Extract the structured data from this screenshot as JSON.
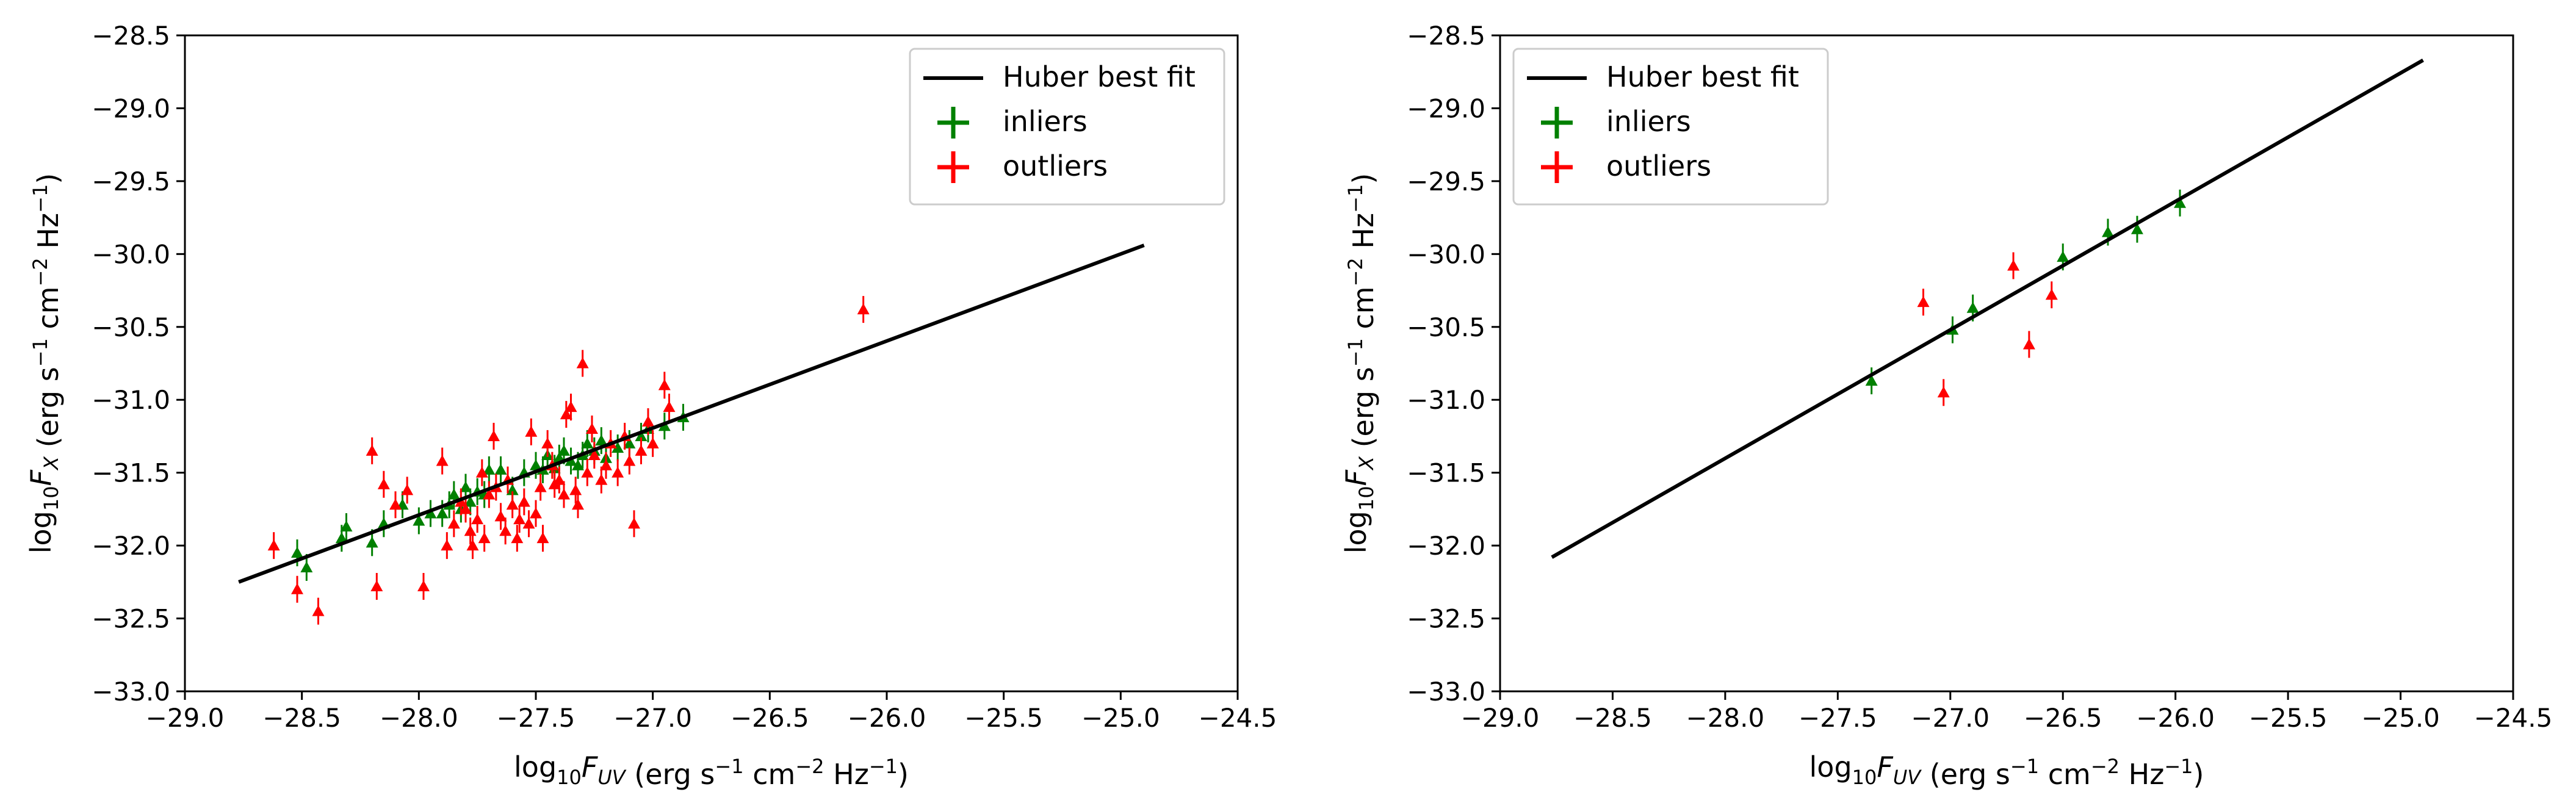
{
  "legend": {
    "fit_label": "Huber best fit",
    "inliers_label": "inliers",
    "outliers_label": "outliers"
  },
  "colors": {
    "fit": "#000000",
    "inliers": "#008000",
    "outliers": "#ff0000",
    "axes": "#000000"
  },
  "chart_data": [
    {
      "type": "scatter",
      "panel": "left",
      "xlabel": "log10 F_UV (erg s^-1 cm^-2 Hz^-1)",
      "ylabel": "log10 F_X (erg s^-1 cm^-2 Hz^-1)",
      "xlim": [
        -29.0,
        -24.5
      ],
      "ylim": [
        -33.0,
        -28.5
      ],
      "xticks": [
        "−29.0",
        "−28.5",
        "−28.0",
        "−27.5",
        "−27.0",
        "−26.5",
        "−26.0",
        "−25.5",
        "−25.0",
        "−24.5"
      ],
      "yticks": [
        "−28.5",
        "−29.0",
        "−29.5",
        "−30.0",
        "−30.5",
        "−31.0",
        "−31.5",
        "−32.0",
        "−32.5",
        "−33.0"
      ],
      "legend_position": "top-right",
      "grid": false,
      "fit_line": {
        "x": [
          -28.77,
          -24.9
        ],
        "y": [
          -32.25,
          -29.94
        ]
      },
      "series": [
        {
          "name": "inliers",
          "marker": "triangle",
          "x": [
            -28.52,
            -28.48,
            -28.33,
            -28.31,
            -28.2,
            -28.15,
            -28.07,
            -28.0,
            -27.95,
            -27.9,
            -27.87,
            -27.85,
            -27.82,
            -27.8,
            -27.78,
            -27.75,
            -27.72,
            -27.7,
            -27.65,
            -27.6,
            -27.55,
            -27.5,
            -27.47,
            -27.45,
            -27.42,
            -27.4,
            -27.38,
            -27.35,
            -27.32,
            -27.3,
            -27.28,
            -27.25,
            -27.22,
            -27.2,
            -27.15,
            -27.1,
            -27.05,
            -27.02,
            -26.95,
            -26.87
          ],
          "y": [
            -32.05,
            -32.15,
            -31.95,
            -31.87,
            -31.98,
            -31.85,
            -31.72,
            -31.83,
            -31.78,
            -31.78,
            -31.72,
            -31.65,
            -31.75,
            -31.6,
            -31.7,
            -31.63,
            -31.65,
            -31.48,
            -31.48,
            -31.62,
            -31.5,
            -31.45,
            -31.48,
            -31.38,
            -31.47,
            -31.4,
            -31.35,
            -31.42,
            -31.45,
            -31.38,
            -31.3,
            -31.35,
            -31.28,
            -31.4,
            -31.33,
            -31.3,
            -31.25,
            -31.2,
            -31.18,
            -31.12
          ]
        },
        {
          "name": "outliers",
          "marker": "triangle",
          "x": [
            -28.62,
            -28.52,
            -28.43,
            -28.2,
            -28.18,
            -28.15,
            -28.1,
            -28.05,
            -27.98,
            -27.9,
            -27.88,
            -27.85,
            -27.82,
            -27.8,
            -27.78,
            -27.77,
            -27.75,
            -27.72,
            -27.7,
            -27.68,
            -27.65,
            -27.63,
            -27.6,
            -27.58,
            -27.55,
            -27.53,
            -27.5,
            -27.48,
            -27.45,
            -27.43,
            -27.4,
            -27.38,
            -27.35,
            -27.33,
            -27.3,
            -27.28,
            -27.26,
            -27.25,
            -27.22,
            -27.2,
            -27.18,
            -27.15,
            -27.12,
            -27.1,
            -27.08,
            -27.05,
            -27.02,
            -27.0,
            -26.95,
            -26.93,
            -26.1,
            -27.62,
            -27.57,
            -27.47,
            -27.42,
            -27.37,
            -27.32,
            -27.52,
            -27.67,
            -27.73
          ],
          "y": [
            -32.0,
            -32.3,
            -32.45,
            -31.35,
            -32.28,
            -31.58,
            -31.72,
            -31.62,
            -32.28,
            -31.42,
            -32.0,
            -31.85,
            -31.7,
            -31.75,
            -31.9,
            -32.0,
            -31.82,
            -31.95,
            -31.65,
            -31.25,
            -31.8,
            -31.9,
            -31.72,
            -31.95,
            -31.7,
            -31.85,
            -31.78,
            -31.6,
            -31.3,
            -31.45,
            -31.55,
            -31.65,
            -31.05,
            -31.62,
            -30.75,
            -31.5,
            -31.2,
            -31.38,
            -31.55,
            -31.45,
            -31.3,
            -31.5,
            -31.25,
            -31.42,
            -31.85,
            -31.35,
            -31.15,
            -31.3,
            -30.9,
            -31.05,
            -30.38,
            -31.55,
            -31.82,
            -31.95,
            -31.58,
            -31.1,
            -31.72,
            -31.22,
            -31.6,
            -31.5
          ]
        }
      ]
    },
    {
      "type": "scatter",
      "panel": "right",
      "xlabel": "log10 F_UV (erg s^-1 cm^-2 Hz^-1)",
      "ylabel": "log10 F_X (erg s^-1 cm^-2 Hz^-1)",
      "xlim": [
        -29.0,
        -24.5
      ],
      "ylim": [
        -33.0,
        -28.5
      ],
      "xticks": [
        "−29.0",
        "−28.5",
        "−28.0",
        "−27.5",
        "−27.0",
        "−26.5",
        "−26.0",
        "−25.5",
        "−25.0",
        "−24.5"
      ],
      "yticks": [
        "−28.5",
        "−29.0",
        "−29.5",
        "−30.0",
        "−30.5",
        "−31.0",
        "−31.5",
        "−32.0",
        "−32.5",
        "−33.0"
      ],
      "legend_position": "top-left",
      "grid": false,
      "fit_line": {
        "x": [
          -28.77,
          -24.9
        ],
        "y": [
          -32.08,
          -28.67
        ]
      },
      "series": [
        {
          "name": "inliers",
          "marker": "triangle",
          "x": [
            -27.35,
            -26.99,
            -26.9,
            -26.5,
            -26.3,
            -26.17,
            -25.98
          ],
          "y": [
            -30.87,
            -30.52,
            -30.37,
            -30.02,
            -29.85,
            -29.83,
            -29.65
          ]
        },
        {
          "name": "outliers",
          "marker": "triangle",
          "x": [
            -27.12,
            -27.03,
            -26.72,
            -26.65,
            -26.55
          ],
          "y": [
            -30.33,
            -30.95,
            -30.08,
            -30.62,
            -30.28
          ]
        }
      ]
    }
  ]
}
